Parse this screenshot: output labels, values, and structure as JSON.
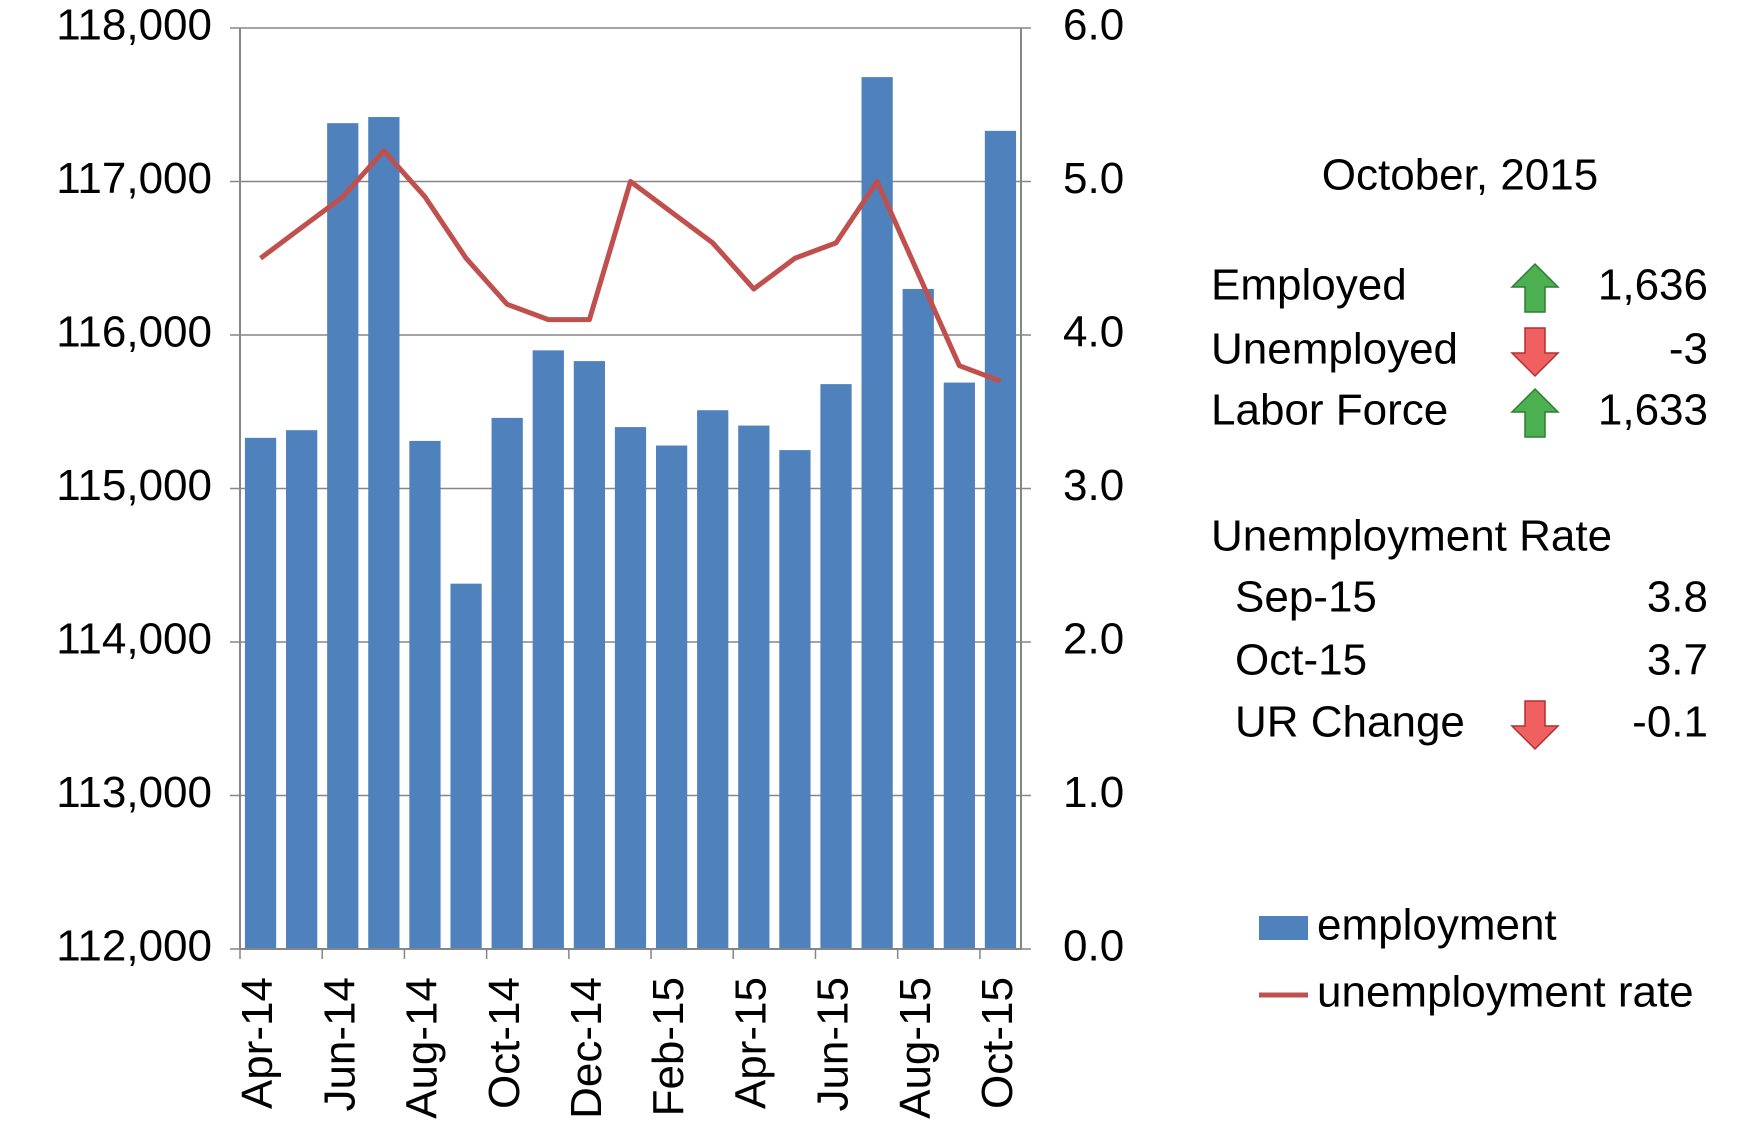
{
  "chart_data": {
    "type": "bar",
    "categories": [
      "Apr-14",
      null,
      "Jun-14",
      null,
      "Aug-14",
      null,
      "Oct-14",
      null,
      "Dec-14",
      null,
      "Feb-15",
      null,
      "Apr-15",
      null,
      "Jun-15",
      null,
      "Aug-15",
      null,
      "Oct-15"
    ],
    "series": [
      {
        "name": "employment",
        "type": "bar",
        "color": "#4f81bd",
        "axis": "y",
        "values": [
          115330,
          115380,
          117380,
          117420,
          115310,
          114380,
          115460,
          115900,
          115830,
          115400,
          115280,
          115510,
          115410,
          115250,
          115680,
          117680,
          116300,
          115690,
          117330
        ]
      },
      {
        "name": "unemployment rate",
        "type": "line",
        "color": "#c0504d",
        "axis": "y2",
        "values": [
          4.5,
          4.7,
          4.9,
          5.2,
          4.9,
          4.5,
          4.2,
          4.1,
          4.1,
          5.0,
          4.8,
          4.6,
          4.3,
          4.5,
          4.6,
          5.0,
          4.4,
          3.8,
          3.7
        ]
      }
    ],
    "ylim": [
      112000,
      118000
    ],
    "yticks": [
      {
        "value": 112000,
        "label": "112,000"
      },
      {
        "value": 113000,
        "label": "113,000"
      },
      {
        "value": 114000,
        "label": "114,000"
      },
      {
        "value": 115000,
        "label": "115,000"
      },
      {
        "value": 116000,
        "label": "116,000"
      },
      {
        "value": 117000,
        "label": "117,000"
      },
      {
        "value": 118000,
        "label": "118,000"
      }
    ],
    "y2lim": [
      0,
      6
    ],
    "y2ticks": [
      {
        "value": 0,
        "label": "0.0"
      },
      {
        "value": 1,
        "label": "1.0"
      },
      {
        "value": 2,
        "label": "2.0"
      },
      {
        "value": 3,
        "label": "3.0"
      },
      {
        "value": 4,
        "label": "4.0"
      },
      {
        "value": 5,
        "label": "5.0"
      },
      {
        "value": 6,
        "label": "6.0"
      }
    ],
    "grid": true
  },
  "panel": {
    "date": "October, 2015",
    "rows": [
      {
        "label": "Employed",
        "value": "1,636"
      },
      {
        "label": "Unemployed",
        "value": "-3"
      },
      {
        "label": "Labor Force",
        "value": "1,633"
      }
    ],
    "rate_title": "Unemployment Rate",
    "rate_rows": [
      {
        "label": "Sep-15",
        "value": "3.8"
      },
      {
        "label": "Oct-15",
        "value": "3.7"
      },
      {
        "label": "UR Change",
        "value": "-0.1"
      }
    ]
  }
}
